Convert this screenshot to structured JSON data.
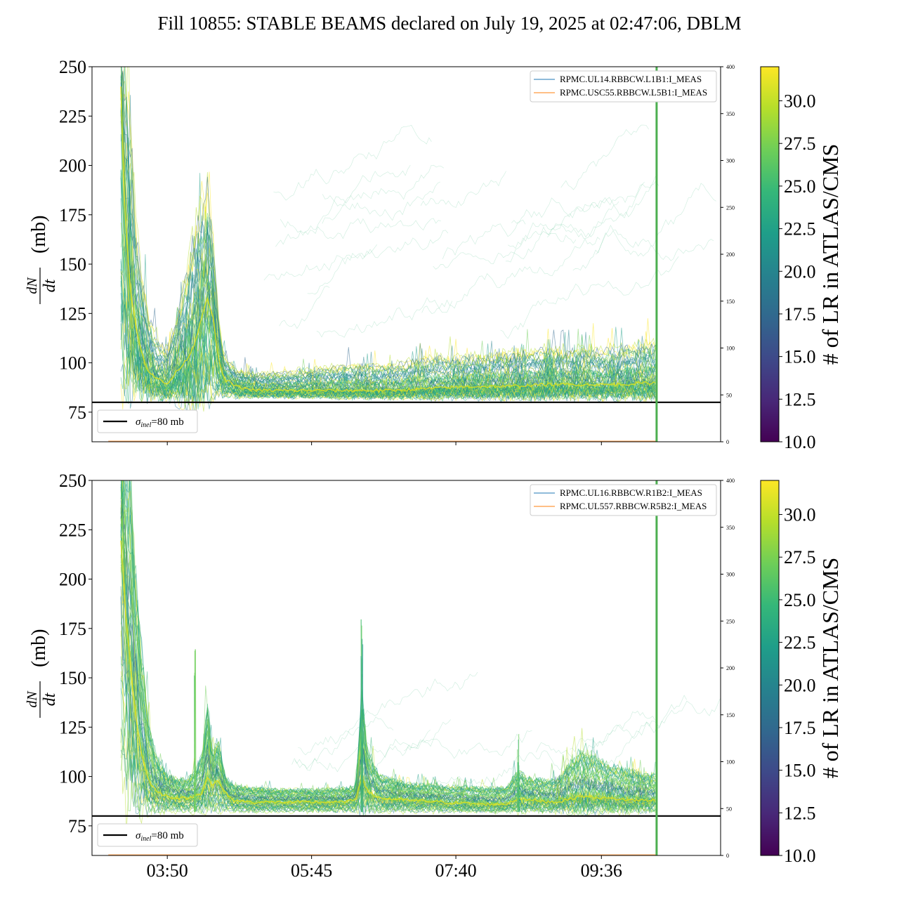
{
  "title": "Fill 10855: STABLE BEAMS declared on July 19, 2025 at 02:47:06, DBLM",
  "colors": {
    "bg": "#ffffff",
    "hline": "#000000",
    "vline": "#4caf50",
    "viridis": [
      "#440154",
      "#482878",
      "#3e4989",
      "#31688e",
      "#26828e",
      "#1f9e89",
      "#35b779",
      "#6ece58",
      "#b5de2b",
      "#fde725"
    ]
  },
  "chart_data": [
    {
      "type": "line",
      "panel": "top",
      "ylabel_frac": "dN/dt / 𝓛",
      "ylabel_unit": "(mb)",
      "ylim": [
        60,
        250
      ],
      "yticks": [
        "75",
        "100",
        "125",
        "150",
        "175",
        "200",
        "225",
        "250"
      ],
      "ytick_values": [
        75,
        100,
        125,
        150,
        175,
        200,
        225,
        250
      ],
      "y2lim": [
        0,
        400
      ],
      "y2ticks": [
        "0",
        "50",
        "100",
        "150",
        "200",
        "250",
        "300",
        "350",
        "400"
      ],
      "x_range_minutes": [
        170,
        671
      ],
      "xtick_minutes": [
        230,
        345,
        460,
        576
      ],
      "xticks": [
        "03:50",
        "05:45",
        "07:40",
        "09:36"
      ],
      "show_xticklabels": false,
      "legend": [
        "RPMC.UL14.RBBCW.L1B1:I_MEAS",
        "RPMC.USC55.RBBCW.L5B1:I_MEAS"
      ],
      "hline": {
        "y": 80,
        "label": "σinel=80 mb"
      },
      "vline_minute": 620,
      "band_profile": {
        "x": [
          193,
          196,
          200,
          205,
          210,
          215,
          222,
          230,
          238,
          246,
          252,
          258,
          262,
          266,
          270,
          275,
          285,
          300,
          320,
          350,
          380,
          410,
          440,
          470,
          500,
          530,
          560,
          590,
          620
        ],
        "lower": [
          86,
          88,
          92,
          90,
          85,
          84,
          83,
          82,
          82,
          82,
          82,
          83,
          84,
          85,
          85,
          84,
          83,
          83,
          83,
          83,
          83,
          83,
          83,
          83,
          83,
          83,
          83,
          83,
          83
        ],
        "median": [
          240,
          180,
          140,
          118,
          104,
          96,
          92,
          89,
          96,
          102,
          110,
          125,
          132,
          125,
          105,
          92,
          88,
          86,
          86,
          86,
          86,
          86,
          87,
          88,
          88,
          89,
          89,
          89,
          90
        ],
        "upper": [
          250,
          250,
          230,
          175,
          145,
          125,
          112,
          108,
          125,
          150,
          170,
          185,
          190,
          170,
          130,
          105,
          97,
          95,
          96,
          98,
          100,
          100,
          104,
          104,
          106,
          108,
          108,
          108,
          112
        ]
      },
      "sparse": {
        "from": 300,
        "to": 620,
        "y_low": 100,
        "y_high": 250,
        "density": 0.35
      }
    },
    {
      "type": "line",
      "panel": "bottom",
      "ylabel_frac": "dN/dt / 𝓛",
      "ylabel_unit": "(mb)",
      "ylim": [
        60,
        250
      ],
      "yticks": [
        "75",
        "100",
        "125",
        "150",
        "175",
        "200",
        "225",
        "250"
      ],
      "ytick_values": [
        75,
        100,
        125,
        150,
        175,
        200,
        225,
        250
      ],
      "y2lim": [
        0,
        400
      ],
      "y2ticks": [
        "0",
        "50",
        "100",
        "150",
        "200",
        "250",
        "300",
        "350",
        "400"
      ],
      "x_range_minutes": [
        170,
        671
      ],
      "xtick_minutes": [
        230,
        345,
        460,
        576
      ],
      "xticks": [
        "03:50",
        "05:45",
        "07:40",
        "09:36"
      ],
      "show_xticklabels": true,
      "legend": [
        "RPMC.UL16.RBBCW.R1B2:I_MEAS",
        "RPMC.UL557.RBBCW.R5B2:I_MEAS"
      ],
      "hline": {
        "y": 80,
        "label": "σinel=80 mb"
      },
      "vline_minute": 620,
      "band_profile": {
        "x": [
          193,
          196,
          200,
          205,
          210,
          215,
          222,
          230,
          238,
          246,
          252,
          258,
          262,
          266,
          270,
          276,
          282,
          300,
          320,
          350,
          370,
          380,
          385,
          390,
          400,
          420,
          450,
          480,
          500,
          510,
          520,
          540,
          560,
          580,
          600,
          620
        ],
        "lower": [
          82,
          82,
          82,
          82,
          82,
          82,
          82,
          82,
          82,
          82,
          82,
          82,
          82,
          82,
          82,
          82,
          82,
          82,
          82,
          82,
          82,
          82,
          82,
          82,
          82,
          82,
          82,
          82,
          82,
          82,
          82,
          82,
          82,
          82,
          82,
          82
        ],
        "median": [
          220,
          190,
          160,
          130,
          110,
          98,
          92,
          90,
          89,
          89,
          90,
          92,
          100,
          95,
          98,
          92,
          88,
          87,
          87,
          87,
          87,
          88,
          100,
          92,
          89,
          88,
          87,
          86,
          86,
          89,
          88,
          87,
          90,
          89,
          88,
          88
        ],
        "upper": [
          250,
          250,
          250,
          200,
          160,
          125,
          108,
          100,
          98,
          98,
          102,
          110,
          135,
          110,
          118,
          100,
          95,
          94,
          93,
          93,
          94,
          94,
          140,
          110,
          100,
          96,
          95,
          94,
          94,
          102,
          98,
          98,
          112,
          106,
          102,
          100
        ]
      },
      "spikes": [
        {
          "x": 385,
          "y": 180
        },
        {
          "x": 510,
          "y": 125
        },
        {
          "x": 252,
          "y": 170
        }
      ],
      "sparse": {
        "from": 300,
        "to": 620,
        "y_low": 95,
        "y_high": 130,
        "density": 0.15
      }
    }
  ],
  "colorbar": {
    "label": "# of LR in ATLAS/CMS",
    "ticks": [
      "10.0",
      "12.5",
      "15.0",
      "17.5",
      "20.0",
      "22.5",
      "25.0",
      "27.5",
      "30.0"
    ],
    "tick_values": [
      10,
      12.5,
      15,
      17.5,
      20,
      22.5,
      25,
      27.5,
      30
    ],
    "range": [
      10,
      32
    ]
  },
  "legend_colors": [
    "#1f77b4",
    "#ff7f0e"
  ]
}
